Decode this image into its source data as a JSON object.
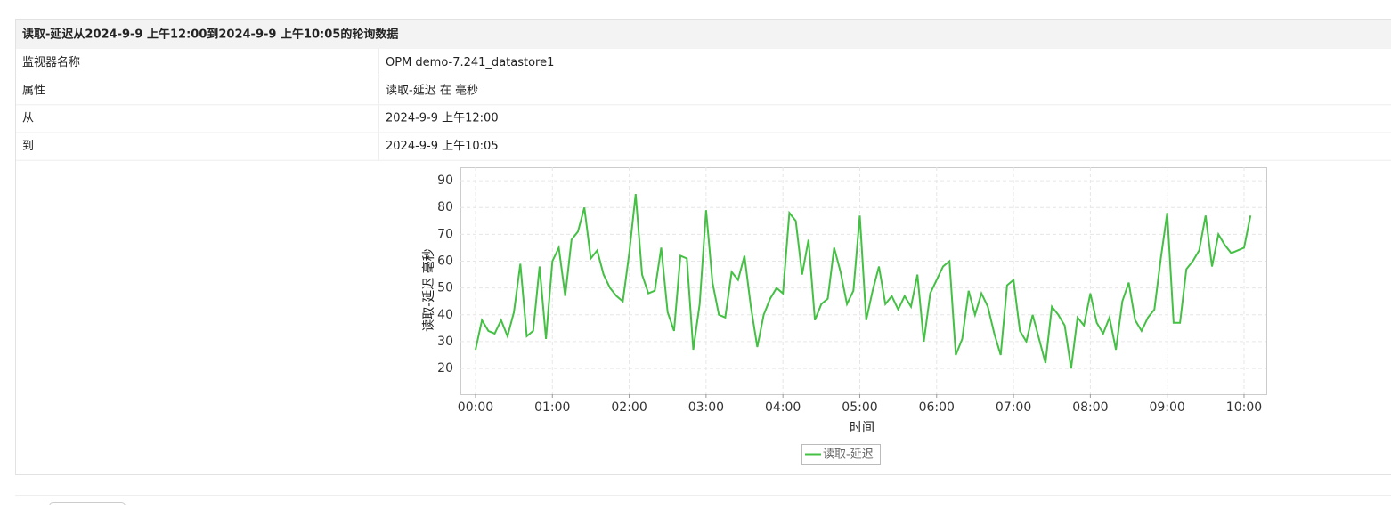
{
  "table": {
    "title": "读取-延迟从2024-9-9 上午12:00到2024-9-9 上午10:05的轮询数据",
    "rows": [
      [
        "监视器名称",
        "OPM demo-7.241_datastore1"
      ],
      [
        "属性",
        "读取-延迟 在 毫秒"
      ],
      [
        "从",
        "2024-9-9 上午12:00"
      ],
      [
        "到",
        "2024-9-9 上午10:05"
      ]
    ]
  },
  "chart_data": {
    "type": "line",
    "xlabel": "时间",
    "ylabel": "读取-延迟 毫秒",
    "grid": true,
    "legend": "bottom",
    "x": [
      0,
      5,
      10,
      15,
      20,
      25,
      30,
      35,
      40,
      45,
      50,
      55,
      60,
      65,
      70,
      75,
      80,
      85,
      90,
      95,
      100,
      105,
      110,
      115,
      120,
      125,
      130,
      135,
      140,
      145,
      150,
      155,
      160,
      165,
      170,
      175,
      180,
      185,
      190,
      195,
      200,
      205,
      210,
      215,
      220,
      225,
      230,
      235,
      240,
      245,
      250,
      255,
      260,
      265,
      270,
      275,
      280,
      285,
      290,
      295,
      300,
      305,
      310,
      315,
      320,
      325,
      330,
      335,
      340,
      345,
      350,
      355,
      360,
      365,
      370,
      375,
      380,
      385,
      390,
      395,
      400,
      405,
      410,
      415,
      420,
      425,
      430,
      435,
      440,
      445,
      450,
      455,
      460,
      465,
      470,
      475,
      480,
      485,
      490,
      495,
      500,
      505,
      510,
      515,
      520,
      525,
      530,
      535,
      540,
      545,
      550,
      555,
      560,
      565,
      570,
      575,
      580,
      585,
      590,
      595,
      600,
      605
    ],
    "xlim": [
      -11.8,
      617.4
    ],
    "xticks": [
      {
        "value": 0,
        "label": "00:00"
      },
      {
        "value": 60,
        "label": "01:00"
      },
      {
        "value": 120,
        "label": "02:00"
      },
      {
        "value": 180,
        "label": "03:00"
      },
      {
        "value": 240,
        "label": "04:00"
      },
      {
        "value": 300,
        "label": "05:00"
      },
      {
        "value": 360,
        "label": "06:00"
      },
      {
        "value": 420,
        "label": "07:00"
      },
      {
        "value": 480,
        "label": "08:00"
      },
      {
        "value": 540,
        "label": "09:00"
      },
      {
        "value": 600,
        "label": "10:00"
      }
    ],
    "ylim": [
      10.4,
      95
    ],
    "yticks": [
      20,
      30,
      40,
      50,
      60,
      70,
      80,
      90
    ],
    "series": [
      {
        "name": "读取-延迟",
        "color": "#44c044",
        "values": [
          27,
          38,
          34,
          33,
          38,
          32,
          41,
          59,
          32,
          34,
          58,
          31,
          60,
          65,
          47,
          68,
          71,
          80,
          61,
          64,
          55,
          50,
          47,
          45,
          63,
          85,
          55,
          48,
          49,
          65,
          41,
          34,
          62,
          61,
          27,
          44,
          79,
          52,
          40,
          39,
          56,
          53,
          62,
          43,
          28,
          40,
          46,
          50,
          48,
          78,
          75,
          55,
          68,
          38,
          44,
          46,
          65,
          56,
          44,
          49,
          77,
          38,
          49,
          58,
          44,
          47,
          42,
          47,
          43,
          55,
          30,
          48,
          53,
          58,
          60,
          25,
          31,
          49,
          40,
          48,
          43,
          33,
          25,
          51,
          53,
          34,
          30,
          40,
          31,
          22,
          43,
          40,
          36,
          20,
          39,
          36,
          48,
          37,
          33,
          39,
          27,
          45,
          52,
          38,
          34,
          39,
          42,
          61,
          78,
          37,
          37,
          57,
          60,
          64,
          77,
          58,
          70,
          66,
          63,
          64,
          65,
          77
        ]
      }
    ]
  }
}
